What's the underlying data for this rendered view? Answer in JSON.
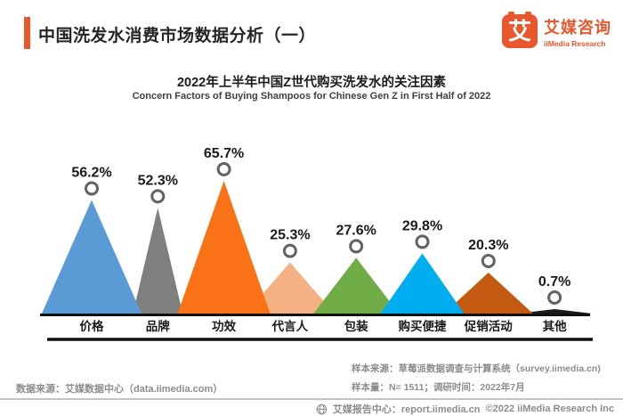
{
  "header": {
    "title": "中国洗发水消费市场数据分析（一）",
    "logo": {
      "icon_char": "艾",
      "name_cn": "艾媒咨询",
      "name_en": "iiMedia Research"
    }
  },
  "chart": {
    "title": "2022年上半年中国Z世代购买洗发水的关注因素",
    "subtitle": "Concern Factors of Buying Shampoos for Chinese Gen Z in First Half of 2022"
  },
  "chart_data": {
    "type": "bar",
    "variant": "triangle-peak",
    "title": "2022年上半年中国Z世代购买洗发水的关注因素",
    "subtitle": "Concern Factors of Buying Shampoos for Chinese Gen Z in First Half of 2022",
    "categories": [
      "价格",
      "品牌",
      "功效",
      "代言人",
      "包装",
      "购买便捷",
      "促销活动",
      "其他"
    ],
    "values": [
      56.2,
      52.3,
      65.7,
      25.3,
      27.6,
      29.8,
      20.3,
      0.7
    ],
    "value_labels": [
      "56.2%",
      "52.3%",
      "65.7%",
      "25.3%",
      "27.6%",
      "29.8%",
      "20.3%",
      "0.7%"
    ],
    "colors": [
      "#5B9BD5",
      "#7F7F7F",
      "#F97316",
      "#F4B183",
      "#70AD47",
      "#00AEEF",
      "#C45A11",
      "#1A1A1A"
    ],
    "xlabel": "",
    "ylabel": "",
    "ylim": [
      0,
      70
    ],
    "grid": false,
    "legend": false,
    "base_half_widths": [
      56,
      28,
      52,
      50,
      48,
      47,
      50,
      42
    ]
  },
  "footer": {
    "data_source": "数据来源：艾媒数据中心（data.iimedia.com）",
    "sample_source": "样本来源：草莓派数据调查与计算系统（survey.iimedia.cn)",
    "sample_size": "样本量：N= 1511；调研时间：2022年7月",
    "report_center": "艾媒报告中心：report.iimedia.cn",
    "copyright": "©2022  iiMedia Research  Inc"
  },
  "colors": {
    "brand_accent": "#E8582C",
    "ring_stroke": "#636363",
    "axis_line": "#111111",
    "value_text": "#1a1a1a",
    "footer_text": "#8C8C8C"
  }
}
